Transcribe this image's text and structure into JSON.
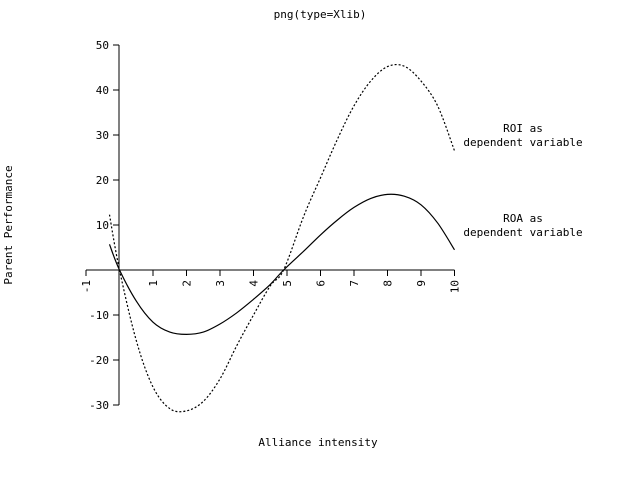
{
  "chart_data": {
    "type": "line",
    "title": "png(type=Xlib)",
    "xlabel": "Alliance intensity",
    "ylabel": "Parent Performance",
    "xlim": [
      -1,
      10
    ],
    "ylim": [
      -30,
      50
    ],
    "x_ticks": [
      "-1",
      "1",
      "2",
      "3",
      "4",
      "5",
      "6",
      "7",
      "8",
      "9",
      "10"
    ],
    "y_ticks": [
      "-30",
      "-20",
      "-10",
      "10",
      "20",
      "30",
      "40",
      "50"
    ],
    "grid": false,
    "series": [
      {
        "name": "ROA as dependent variable",
        "label_lines": [
          "ROA as",
          "dependent variable"
        ],
        "style": "solid",
        "color": "#000000",
        "x": [
          -0.3,
          0,
          0.5,
          1,
          1.5,
          2,
          2.5,
          3,
          3.5,
          4,
          4.5,
          4.9,
          5.5,
          6,
          6.5,
          7,
          7.5,
          8,
          8.5,
          9,
          9.5,
          10
        ],
        "y": [
          5.7,
          0.0,
          -6.9,
          -11.6,
          -13.8,
          -14.3,
          -13.8,
          -12.0,
          -9.5,
          -6.5,
          -3.2,
          0.0,
          4.2,
          7.8,
          11.1,
          13.9,
          15.9,
          16.8,
          16.4,
          14.5,
          10.4,
          4.5
        ]
      },
      {
        "name": "ROI as dependent variable",
        "label_lines": [
          "ROI as",
          "dependent variable"
        ],
        "style": "dashed",
        "color": "#000000",
        "x": [
          -0.3,
          0,
          0.5,
          1,
          1.5,
          2,
          2.5,
          3,
          3.5,
          4,
          4.5,
          4.9,
          5.5,
          6,
          6.5,
          7,
          7.5,
          8,
          8.5,
          9,
          9.5,
          10
        ],
        "y": [
          12.3,
          0.0,
          -15.7,
          -26.0,
          -30.8,
          -31.3,
          -29.2,
          -24.2,
          -16.8,
          -10.0,
          -3.5,
          0.0,
          12.0,
          20.5,
          29.0,
          36.5,
          42.0,
          45.2,
          45.3,
          42.0,
          36.4,
          26.5
        ]
      }
    ]
  }
}
